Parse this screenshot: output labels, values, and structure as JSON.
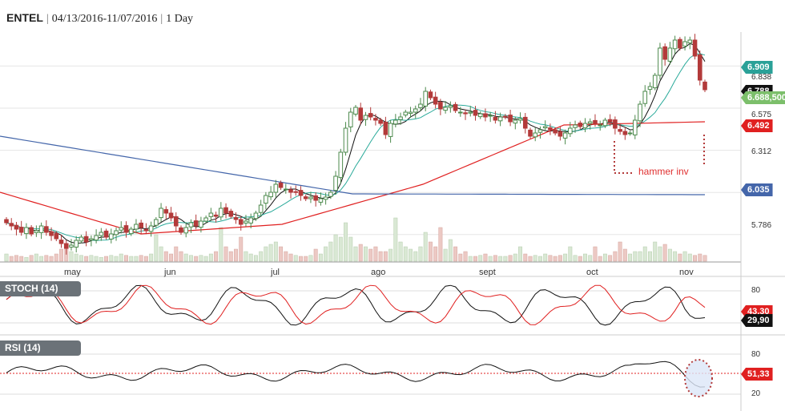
{
  "header": {
    "symbol": "ENTEL",
    "date_range": "04/13/2016-11/07/2016",
    "interval": "1 Day"
  },
  "panels": {
    "stoch_label": "STOCH (14)",
    "rsi_label": "RSI (14)"
  },
  "annotation": {
    "text": "hammer inv",
    "color": "#e03030"
  },
  "colors": {
    "up": "#4d8a4d",
    "down": "#b33a3a",
    "sma_short": "#2aaa9a",
    "sma_mid": "#e02020",
    "sma_long": "#4466aa",
    "tag_teal": "#2aa198",
    "tag_green": "#7cbf6b",
    "tag_red": "#e02020",
    "tag_blue": "#4466aa",
    "tag_black": "#111111",
    "stoch_k": "#111111",
    "stoch_d": "#e02020"
  },
  "chart_data": {
    "type": "candlestick",
    "price_axis": {
      "ticks": [
        "6.838",
        "6.575",
        "6.312",
        "5.786"
      ],
      "range": [
        5.62,
        7.0
      ]
    },
    "x_labels": [
      "may",
      "jun",
      "jul",
      "ago",
      "sept",
      "oct",
      "nov"
    ],
    "price_tags": {
      "sma_short": "6.909",
      "last_hidden": "6.788",
      "last": "6.688,500",
      "sma_mid": "6.492",
      "sma_long": "6.035"
    },
    "stoch": {
      "ticks": [
        "80",
        "20"
      ],
      "k_value": "29,90",
      "d_value": "43,30"
    },
    "rsi": {
      "ticks": [
        "80",
        "20"
      ],
      "value": "51,33"
    },
    "close": [
      5.86,
      5.84,
      5.82,
      5.8,
      5.83,
      5.79,
      5.81,
      5.84,
      5.8,
      5.78,
      5.76,
      5.73,
      5.7,
      5.72,
      5.75,
      5.77,
      5.74,
      5.76,
      5.78,
      5.8,
      5.77,
      5.79,
      5.81,
      5.83,
      5.8,
      5.82,
      5.85,
      5.83,
      5.81,
      5.84,
      5.88,
      5.95,
      5.92,
      5.89,
      5.84,
      5.8,
      5.83,
      5.86,
      5.84,
      5.87,
      5.89,
      5.92,
      5.9,
      5.95,
      5.92,
      5.9,
      5.88,
      5.85,
      5.87,
      5.89,
      5.92,
      5.97,
      6.03,
      6.05,
      6.1,
      6.08,
      6.07,
      6.05,
      6.05,
      6.03,
      6.01,
      6.02,
      6.0,
      6.01,
      6.02,
      6.05,
      6.15,
      6.3,
      6.45,
      6.55,
      6.58,
      6.5,
      6.53,
      6.52,
      6.5,
      6.48,
      6.41,
      6.48,
      6.5,
      6.52,
      6.55,
      6.55,
      6.57,
      6.6,
      6.68,
      6.64,
      6.6,
      6.57,
      6.58,
      6.59,
      6.56,
      6.55,
      6.54,
      6.55,
      6.53,
      6.54,
      6.52,
      6.53,
      6.5,
      6.52,
      6.52,
      6.49,
      6.5,
      6.51,
      6.45,
      6.4,
      6.42,
      6.44,
      6.46,
      6.44,
      6.42,
      6.4,
      6.42,
      6.45,
      6.47,
      6.46,
      6.48,
      6.49,
      6.48,
      6.47,
      6.5,
      6.49,
      6.45,
      6.43,
      6.41,
      6.42,
      6.5,
      6.6,
      6.68,
      6.71,
      6.78,
      6.95,
      6.88,
      6.95,
      7.0,
      6.95,
      6.99,
      7.0,
      6.9,
      6.75,
      6.69
    ],
    "volume": [
      0.15,
      0.1,
      0.12,
      0.1,
      0.08,
      0.12,
      0.15,
      0.1,
      0.12,
      0.1,
      0.15,
      0.25,
      0.3,
      0.2,
      0.15,
      0.12,
      0.1,
      0.12,
      0.1,
      0.08,
      0.1,
      0.12,
      0.1,
      0.15,
      0.12,
      0.1,
      0.1,
      0.12,
      0.1,
      0.15,
      0.55,
      0.3,
      0.2,
      0.15,
      0.3,
      0.2,
      0.15,
      0.12,
      0.1,
      0.12,
      0.1,
      0.15,
      0.2,
      0.7,
      0.3,
      0.2,
      0.25,
      0.5,
      0.2,
      0.15,
      0.12,
      0.2,
      0.3,
      0.35,
      0.4,
      0.3,
      0.2,
      0.15,
      0.12,
      0.1,
      0.1,
      0.12,
      0.25,
      0.15,
      0.3,
      0.4,
      0.55,
      0.5,
      0.8,
      0.5,
      0.3,
      0.35,
      0.3,
      0.25,
      0.3,
      0.2,
      0.2,
      0.25,
      0.9,
      0.4,
      0.3,
      0.25,
      0.2,
      0.3,
      0.6,
      0.4,
      0.3,
      0.7,
      0.25,
      0.45,
      0.3,
      0.15,
      0.2,
      0.1,
      0.1,
      0.12,
      0.15,
      0.1,
      0.12,
      0.1,
      0.1,
      0.12,
      0.15,
      0.3,
      0.15,
      0.1,
      0.12,
      0.1,
      0.15,
      0.12,
      0.1,
      0.12,
      0.15,
      0.3,
      0.12,
      0.1,
      0.15,
      0.12,
      0.3,
      0.1,
      0.15,
      0.12,
      0.2,
      0.4,
      0.25,
      0.15,
      0.2,
      0.2,
      0.3,
      0.2,
      0.4,
      0.3,
      0.35,
      0.25,
      0.2,
      0.15,
      0.2,
      0.15,
      0.12,
      0.15,
      0.12
    ],
    "sma_long_values": [
      6.4,
      6.04,
      6.035
    ],
    "sma_mid_values": [
      6.05,
      5.79,
      5.85,
      6.1,
      6.47,
      6.49
    ]
  }
}
